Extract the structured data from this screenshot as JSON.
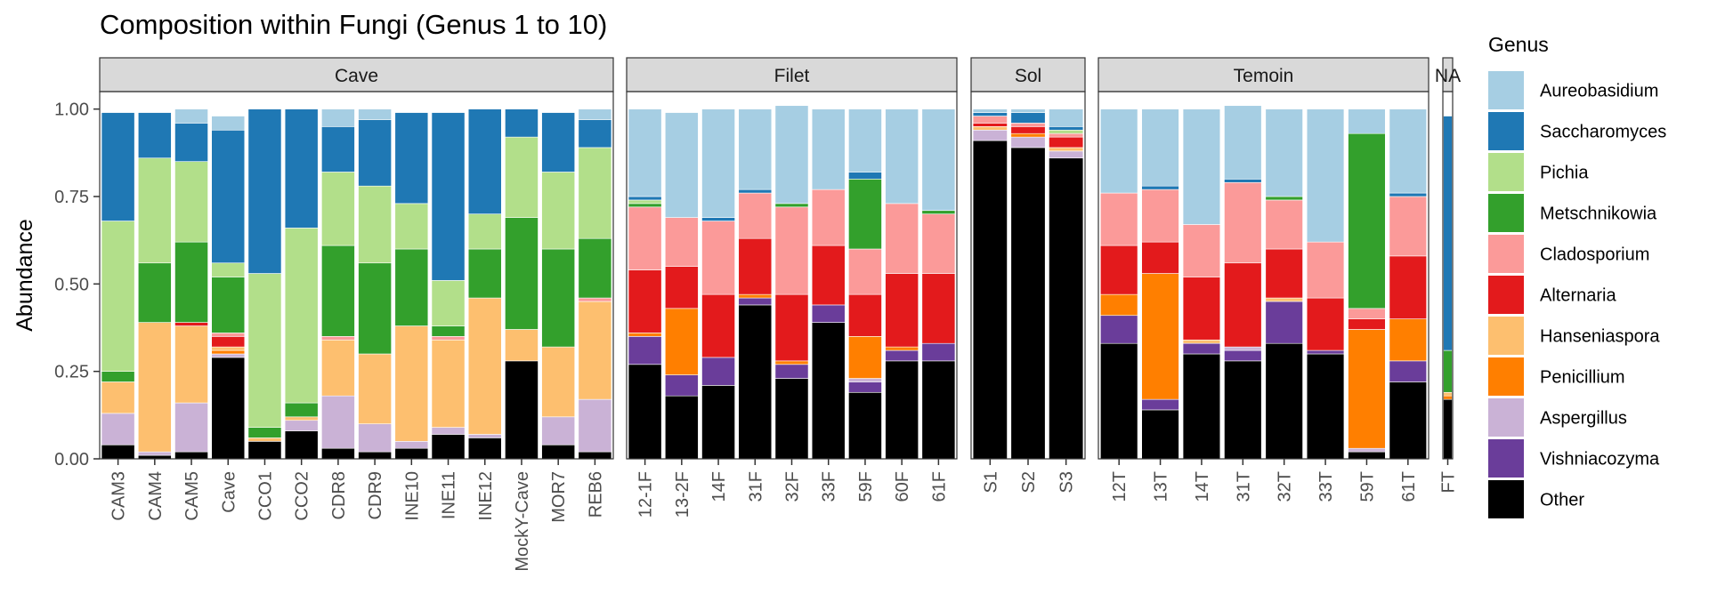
{
  "chart_data": {
    "type": "bar",
    "stacked": true,
    "faceted": true,
    "title": "Composition within Fungi (Genus 1 to 10)",
    "xlabel": "",
    "ylabel": "Abundance",
    "ylim": [
      0,
      1.05
    ],
    "yticks": [
      "0.00",
      "0.25",
      "0.50",
      "0.75",
      "1.00"
    ],
    "grid": false,
    "legend": {
      "title": "Genus",
      "placement": "right"
    },
    "genera": [
      "Aureobasidium",
      "Saccharomyces",
      "Pichia",
      "Metschnikowia",
      "Cladosporium",
      "Alternaria",
      "Hanseniaspora",
      "Penicillium",
      "Aspergillus",
      "Vishniacozyma",
      "Other"
    ],
    "colors": [
      "#A6CEE3",
      "#1F78B4",
      "#B2DF8A",
      "#33A02C",
      "#FB9A99",
      "#E31A1C",
      "#FDBF6F",
      "#FF7F00",
      "#CAB2D6",
      "#6A3D9A",
      "#000000"
    ],
    "stack_order_bottom_to_top": [
      "Other",
      "Vishniacozyma",
      "Aspergillus",
      "Penicillium",
      "Hanseniaspora",
      "Alternaria",
      "Cladosporium",
      "Metschnikowia",
      "Pichia",
      "Saccharomyces",
      "Aureobasidium"
    ],
    "panels": [
      {
        "name": "Cave",
        "samples": [
          {
            "label": "CAM3",
            "values": {
              "Other": 0.04,
              "Vishniacozyma": 0.0,
              "Aspergillus": 0.09,
              "Penicillium": 0.0,
              "Hanseniaspora": 0.09,
              "Alternaria": 0.0,
              "Cladosporium": 0.0,
              "Metschnikowia": 0.03,
              "Pichia": 0.43,
              "Saccharomyces": 0.31,
              "Aureobasidium": 0.0
            }
          },
          {
            "label": "CAM4",
            "values": {
              "Other": 0.01,
              "Vishniacozyma": 0.0,
              "Aspergillus": 0.01,
              "Penicillium": 0.0,
              "Hanseniaspora": 0.37,
              "Alternaria": 0.0,
              "Cladosporium": 0.0,
              "Metschnikowia": 0.17,
              "Pichia": 0.3,
              "Saccharomyces": 0.13,
              "Aureobasidium": 0.0
            }
          },
          {
            "label": "CAM5",
            "values": {
              "Other": 0.02,
              "Vishniacozyma": 0.0,
              "Aspergillus": 0.14,
              "Penicillium": 0.0,
              "Hanseniaspora": 0.22,
              "Alternaria": 0.01,
              "Cladosporium": 0.0,
              "Metschnikowia": 0.23,
              "Pichia": 0.23,
              "Saccharomyces": 0.11,
              "Aureobasidium": 0.04
            }
          },
          {
            "label": "Cave",
            "values": {
              "Other": 0.29,
              "Vishniacozyma": 0.0,
              "Aspergillus": 0.01,
              "Penicillium": 0.01,
              "Hanseniaspora": 0.01,
              "Alternaria": 0.03,
              "Cladosporium": 0.01,
              "Metschnikowia": 0.16,
              "Pichia": 0.04,
              "Saccharomyces": 0.38,
              "Aureobasidium": 0.04
            }
          },
          {
            "label": "CCO1",
            "values": {
              "Other": 0.05,
              "Vishniacozyma": 0.0,
              "Aspergillus": 0.0,
              "Penicillium": 0.0,
              "Hanseniaspora": 0.01,
              "Alternaria": 0.0,
              "Cladosporium": 0.0,
              "Metschnikowia": 0.03,
              "Pichia": 0.44,
              "Saccharomyces": 0.47,
              "Aureobasidium": 0.0
            }
          },
          {
            "label": "CCO2",
            "values": {
              "Other": 0.08,
              "Vishniacozyma": 0.0,
              "Aspergillus": 0.03,
              "Penicillium": 0.0,
              "Hanseniaspora": 0.01,
              "Alternaria": 0.0,
              "Cladosporium": 0.0,
              "Metschnikowia": 0.04,
              "Pichia": 0.5,
              "Saccharomyces": 0.34,
              "Aureobasidium": 0.0
            }
          },
          {
            "label": "CDR8",
            "values": {
              "Other": 0.03,
              "Vishniacozyma": 0.0,
              "Aspergillus": 0.15,
              "Penicillium": 0.0,
              "Hanseniaspora": 0.16,
              "Alternaria": 0.0,
              "Cladosporium": 0.01,
              "Metschnikowia": 0.26,
              "Pichia": 0.21,
              "Saccharomyces": 0.13,
              "Aureobasidium": 0.05
            }
          },
          {
            "label": "CDR9",
            "values": {
              "Other": 0.02,
              "Vishniacozyma": 0.0,
              "Aspergillus": 0.08,
              "Penicillium": 0.0,
              "Hanseniaspora": 0.2,
              "Alternaria": 0.0,
              "Cladosporium": 0.0,
              "Metschnikowia": 0.26,
              "Pichia": 0.22,
              "Saccharomyces": 0.19,
              "Aureobasidium": 0.03
            }
          },
          {
            "label": "INE10",
            "values": {
              "Other": 0.03,
              "Vishniacozyma": 0.0,
              "Aspergillus": 0.02,
              "Penicillium": 0.0,
              "Hanseniaspora": 0.33,
              "Alternaria": 0.0,
              "Cladosporium": 0.0,
              "Metschnikowia": 0.22,
              "Pichia": 0.13,
              "Saccharomyces": 0.26,
              "Aureobasidium": 0.0
            }
          },
          {
            "label": "INE11",
            "values": {
              "Other": 0.07,
              "Vishniacozyma": 0.0,
              "Aspergillus": 0.02,
              "Penicillium": 0.0,
              "Hanseniaspora": 0.25,
              "Alternaria": 0.0,
              "Cladosporium": 0.01,
              "Metschnikowia": 0.03,
              "Pichia": 0.13,
              "Saccharomyces": 0.48,
              "Aureobasidium": 0.0
            }
          },
          {
            "label": "INE12",
            "values": {
              "Other": 0.06,
              "Vishniacozyma": 0.0,
              "Aspergillus": 0.01,
              "Penicillium": 0.0,
              "Hanseniaspora": 0.39,
              "Alternaria": 0.0,
              "Cladosporium": 0.0,
              "Metschnikowia": 0.14,
              "Pichia": 0.1,
              "Saccharomyces": 0.3,
              "Aureobasidium": 0.0
            }
          },
          {
            "label": "MockY-Cave",
            "values": {
              "Other": 0.28,
              "Vishniacozyma": 0.0,
              "Aspergillus": 0.0,
              "Penicillium": 0.0,
              "Hanseniaspora": 0.09,
              "Alternaria": 0.0,
              "Cladosporium": 0.0,
              "Metschnikowia": 0.32,
              "Pichia": 0.23,
              "Saccharomyces": 0.08,
              "Aureobasidium": 0.0
            }
          },
          {
            "label": "MOR7",
            "values": {
              "Other": 0.04,
              "Vishniacozyma": 0.0,
              "Aspergillus": 0.08,
              "Penicillium": 0.0,
              "Hanseniaspora": 0.2,
              "Alternaria": 0.0,
              "Cladosporium": 0.0,
              "Metschnikowia": 0.28,
              "Pichia": 0.22,
              "Saccharomyces": 0.17,
              "Aureobasidium": 0.0
            }
          },
          {
            "label": "REB6",
            "values": {
              "Other": 0.02,
              "Vishniacozyma": 0.0,
              "Aspergillus": 0.15,
              "Penicillium": 0.0,
              "Hanseniaspora": 0.28,
              "Alternaria": 0.0,
              "Cladosporium": 0.01,
              "Metschnikowia": 0.17,
              "Pichia": 0.26,
              "Saccharomyces": 0.08,
              "Aureobasidium": 0.03
            }
          }
        ]
      },
      {
        "name": "Filet",
        "samples": [
          {
            "label": "12-1F",
            "values": {
              "Other": 0.27,
              "Vishniacozyma": 0.08,
              "Aspergillus": 0.0,
              "Penicillium": 0.01,
              "Hanseniaspora": 0.0,
              "Alternaria": 0.18,
              "Cladosporium": 0.18,
              "Metschnikowia": 0.01,
              "Pichia": 0.01,
              "Saccharomyces": 0.01,
              "Aureobasidium": 0.25
            }
          },
          {
            "label": "13-2F",
            "values": {
              "Other": 0.18,
              "Vishniacozyma": 0.06,
              "Aspergillus": 0.0,
              "Penicillium": 0.19,
              "Hanseniaspora": 0.0,
              "Alternaria": 0.12,
              "Cladosporium": 0.14,
              "Metschnikowia": 0.0,
              "Pichia": 0.0,
              "Saccharomyces": 0.0,
              "Aureobasidium": 0.3
            }
          },
          {
            "label": "14F",
            "values": {
              "Other": 0.21,
              "Vishniacozyma": 0.08,
              "Aspergillus": 0.0,
              "Penicillium": 0.0,
              "Hanseniaspora": 0.0,
              "Alternaria": 0.18,
              "Cladosporium": 0.21,
              "Metschnikowia": 0.0,
              "Pichia": 0.0,
              "Saccharomyces": 0.01,
              "Aureobasidium": 0.31
            }
          },
          {
            "label": "31F",
            "values": {
              "Other": 0.44,
              "Vishniacozyma": 0.02,
              "Aspergillus": 0.0,
              "Penicillium": 0.01,
              "Hanseniaspora": 0.0,
              "Alternaria": 0.16,
              "Cladosporium": 0.13,
              "Metschnikowia": 0.0,
              "Pichia": 0.0,
              "Saccharomyces": 0.01,
              "Aureobasidium": 0.23
            }
          },
          {
            "label": "32F",
            "values": {
              "Other": 0.23,
              "Vishniacozyma": 0.04,
              "Aspergillus": 0.0,
              "Penicillium": 0.01,
              "Hanseniaspora": 0.0,
              "Alternaria": 0.19,
              "Cladosporium": 0.25,
              "Metschnikowia": 0.01,
              "Pichia": 0.0,
              "Saccharomyces": 0.0,
              "Aureobasidium": 0.28
            }
          },
          {
            "label": "33F",
            "values": {
              "Other": 0.39,
              "Vishniacozyma": 0.05,
              "Aspergillus": 0.0,
              "Penicillium": 0.0,
              "Hanseniaspora": 0.0,
              "Alternaria": 0.17,
              "Cladosporium": 0.16,
              "Metschnikowia": 0.0,
              "Pichia": 0.0,
              "Saccharomyces": 0.0,
              "Aureobasidium": 0.23
            }
          },
          {
            "label": "59F",
            "values": {
              "Other": 0.19,
              "Vishniacozyma": 0.03,
              "Aspergillus": 0.01,
              "Penicillium": 0.12,
              "Hanseniaspora": 0.0,
              "Alternaria": 0.12,
              "Cladosporium": 0.13,
              "Metschnikowia": 0.2,
              "Pichia": 0.0,
              "Saccharomyces": 0.02,
              "Aureobasidium": 0.18
            }
          },
          {
            "label": "60F",
            "values": {
              "Other": 0.28,
              "Vishniacozyma": 0.03,
              "Aspergillus": 0.0,
              "Penicillium": 0.01,
              "Hanseniaspora": 0.0,
              "Alternaria": 0.21,
              "Cladosporium": 0.2,
              "Metschnikowia": 0.0,
              "Pichia": 0.0,
              "Saccharomyces": 0.0,
              "Aureobasidium": 0.27
            }
          },
          {
            "label": "61F",
            "values": {
              "Other": 0.28,
              "Vishniacozyma": 0.05,
              "Aspergillus": 0.0,
              "Penicillium": 0.0,
              "Hanseniaspora": 0.0,
              "Alternaria": 0.2,
              "Cladosporium": 0.17,
              "Metschnikowia": 0.01,
              "Pichia": 0.0,
              "Saccharomyces": 0.0,
              "Aureobasidium": 0.29
            }
          }
        ]
      },
      {
        "name": "Sol",
        "samples": [
          {
            "label": "S1",
            "values": {
              "Other": 0.91,
              "Vishniacozyma": 0.0,
              "Aspergillus": 0.03,
              "Penicillium": 0.0,
              "Hanseniaspora": 0.01,
              "Alternaria": 0.01,
              "Cladosporium": 0.02,
              "Metschnikowia": 0.0,
              "Pichia": 0.0,
              "Saccharomyces": 0.01,
              "Aureobasidium": 0.01
            }
          },
          {
            "label": "S2",
            "values": {
              "Other": 0.89,
              "Vishniacozyma": 0.0,
              "Aspergillus": 0.03,
              "Penicillium": 0.01,
              "Hanseniaspora": 0.0,
              "Alternaria": 0.02,
              "Cladosporium": 0.01,
              "Metschnikowia": 0.0,
              "Pichia": 0.0,
              "Saccharomyces": 0.03,
              "Aureobasidium": 0.01
            }
          },
          {
            "label": "S3",
            "values": {
              "Other": 0.86,
              "Vishniacozyma": 0.0,
              "Aspergillus": 0.02,
              "Penicillium": 0.0,
              "Hanseniaspora": 0.01,
              "Alternaria": 0.03,
              "Cladosporium": 0.01,
              "Metschnikowia": 0.0,
              "Pichia": 0.01,
              "Saccharomyces": 0.01,
              "Aureobasidium": 0.05
            }
          }
        ]
      },
      {
        "name": "Temoin",
        "samples": [
          {
            "label": "12T",
            "values": {
              "Other": 0.33,
              "Vishniacozyma": 0.08,
              "Aspergillus": 0.0,
              "Penicillium": 0.06,
              "Hanseniaspora": 0.0,
              "Alternaria": 0.14,
              "Cladosporium": 0.15,
              "Metschnikowia": 0.0,
              "Pichia": 0.0,
              "Saccharomyces": 0.0,
              "Aureobasidium": 0.24
            }
          },
          {
            "label": "13T",
            "values": {
              "Other": 0.14,
              "Vishniacozyma": 0.03,
              "Aspergillus": 0.0,
              "Penicillium": 0.36,
              "Hanseniaspora": 0.0,
              "Alternaria": 0.09,
              "Cladosporium": 0.15,
              "Metschnikowia": 0.0,
              "Pichia": 0.0,
              "Saccharomyces": 0.01,
              "Aureobasidium": 0.22
            }
          },
          {
            "label": "14T",
            "values": {
              "Other": 0.3,
              "Vishniacozyma": 0.03,
              "Aspergillus": 0.0,
              "Penicillium": 0.0,
              "Hanseniaspora": 0.01,
              "Alternaria": 0.18,
              "Cladosporium": 0.15,
              "Metschnikowia": 0.0,
              "Pichia": 0.0,
              "Saccharomyces": 0.0,
              "Aureobasidium": 0.33
            }
          },
          {
            "label": "31T",
            "values": {
              "Other": 0.28,
              "Vishniacozyma": 0.03,
              "Aspergillus": 0.01,
              "Penicillium": 0.0,
              "Hanseniaspora": 0.0,
              "Alternaria": 0.24,
              "Cladosporium": 0.23,
              "Metschnikowia": 0.0,
              "Pichia": 0.0,
              "Saccharomyces": 0.01,
              "Aureobasidium": 0.21
            }
          },
          {
            "label": "32T",
            "values": {
              "Other": 0.33,
              "Vishniacozyma": 0.12,
              "Aspergillus": 0.0,
              "Penicillium": 0.0,
              "Hanseniaspora": 0.01,
              "Alternaria": 0.14,
              "Cladosporium": 0.14,
              "Metschnikowia": 0.01,
              "Pichia": 0.0,
              "Saccharomyces": 0.0,
              "Aureobasidium": 0.25
            }
          },
          {
            "label": "33T",
            "values": {
              "Other": 0.3,
              "Vishniacozyma": 0.01,
              "Aspergillus": 0.0,
              "Penicillium": 0.0,
              "Hanseniaspora": 0.0,
              "Alternaria": 0.15,
              "Cladosporium": 0.16,
              "Metschnikowia": 0.0,
              "Pichia": 0.0,
              "Saccharomyces": 0.0,
              "Aureobasidium": 0.38
            }
          },
          {
            "label": "59T",
            "values": {
              "Other": 0.02,
              "Vishniacozyma": 0.0,
              "Aspergillus": 0.01,
              "Penicillium": 0.34,
              "Hanseniaspora": 0.0,
              "Alternaria": 0.03,
              "Cladosporium": 0.03,
              "Metschnikowia": 0.5,
              "Pichia": 0.0,
              "Saccharomyces": 0.0,
              "Aureobasidium": 0.07
            }
          },
          {
            "label": "61T",
            "values": {
              "Other": 0.22,
              "Vishniacozyma": 0.06,
              "Aspergillus": 0.0,
              "Penicillium": 0.12,
              "Hanseniaspora": 0.0,
              "Alternaria": 0.18,
              "Cladosporium": 0.17,
              "Metschnikowia": 0.0,
              "Pichia": 0.0,
              "Saccharomyces": 0.01,
              "Aureobasidium": 0.24
            }
          }
        ]
      },
      {
        "name": "NA",
        "samples": [
          {
            "label": "FT",
            "values": {
              "Other": 0.17,
              "Vishniacozyma": 0.0,
              "Aspergillus": 0.0,
              "Penicillium": 0.01,
              "Hanseniaspora": 0.01,
              "Alternaria": 0.0,
              "Cladosporium": 0.0,
              "Metschnikowia": 0.12,
              "Pichia": 0.0,
              "Saccharomyces": 0.67,
              "Aureobasidium": 0.0
            }
          }
        ]
      }
    ]
  }
}
